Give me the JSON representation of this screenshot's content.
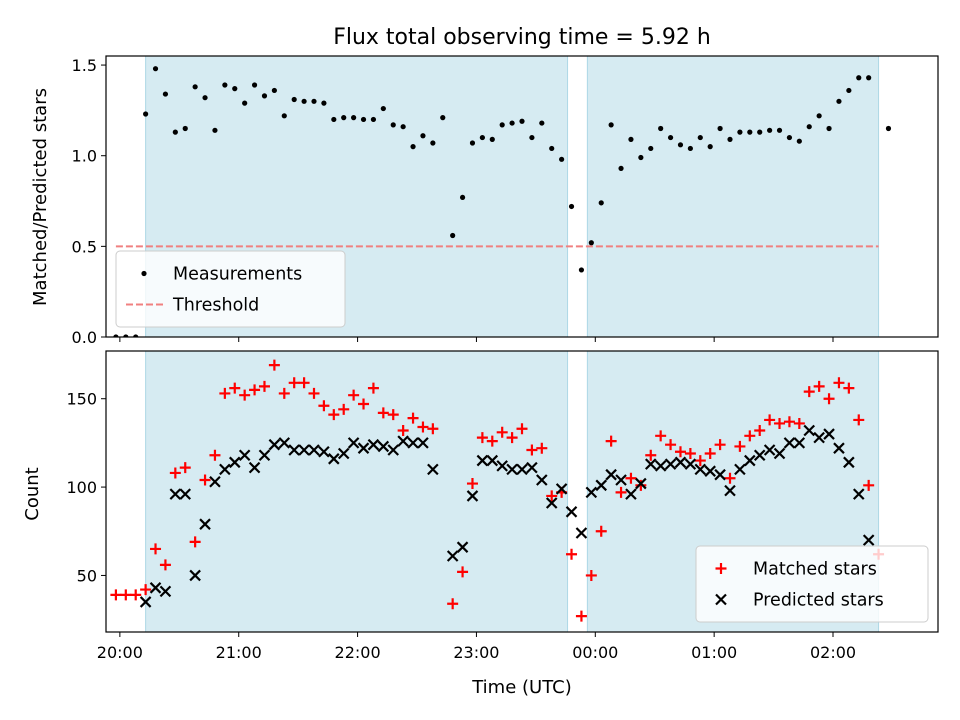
{
  "chart_data": [
    {
      "type": "scatter",
      "title": "Flux total observing time = 5.92 h",
      "ylabel": "Matched/Predicted stars",
      "xlabel": "",
      "xlim": [
        "19:53",
        "02:53"
      ],
      "ylim": [
        0,
        1.55
      ],
      "yticks": [
        "0.0",
        "0.5",
        "1.0",
        "1.5"
      ],
      "grid": false,
      "legend_position": "lower-left",
      "shaded_intervals": [
        [
          "20:13",
          "23:46"
        ],
        [
          "23:56",
          "02:23"
        ]
      ],
      "series": [
        {
          "name": "Measurements",
          "marker": "dot",
          "color": "#000000",
          "points": [
            [
              "19:58",
              0
            ],
            [
              "20:03",
              0
            ],
            [
              "20:08",
              0
            ],
            [
              "20:13",
              1.23
            ],
            [
              "20:18",
              1.48
            ],
            [
              "20:23",
              1.34
            ],
            [
              "20:28",
              1.13
            ],
            [
              "20:33",
              1.15
            ],
            [
              "20:38",
              1.38
            ],
            [
              "20:43",
              1.32
            ],
            [
              "20:48",
              1.14
            ],
            [
              "20:53",
              1.39
            ],
            [
              "20:58",
              1.37
            ],
            [
              "21:03",
              1.29
            ],
            [
              "21:08",
              1.39
            ],
            [
              "21:13",
              1.33
            ],
            [
              "21:18",
              1.36
            ],
            [
              "21:23",
              1.22
            ],
            [
              "21:28",
              1.31
            ],
            [
              "21:33",
              1.3
            ],
            [
              "21:38",
              1.3
            ],
            [
              "21:43",
              1.29
            ],
            [
              "21:48",
              1.2
            ],
            [
              "21:53",
              1.21
            ],
            [
              "21:58",
              1.21
            ],
            [
              "22:03",
              1.2
            ],
            [
              "22:08",
              1.2
            ],
            [
              "22:13",
              1.26
            ],
            [
              "22:18",
              1.17
            ],
            [
              "22:23",
              1.16
            ],
            [
              "22:28",
              1.05
            ],
            [
              "22:33",
              1.11
            ],
            [
              "22:38",
              1.07
            ],
            [
              "22:43",
              1.21
            ],
            [
              "22:48",
              0.56
            ],
            [
              "22:53",
              0.77
            ],
            [
              "22:58",
              1.07
            ],
            [
              "23:03",
              1.1
            ],
            [
              "23:08",
              1.09
            ],
            [
              "23:13",
              1.17
            ],
            [
              "23:18",
              1.18
            ],
            [
              "23:23",
              1.19
            ],
            [
              "23:28",
              1.1
            ],
            [
              "23:33",
              1.18
            ],
            [
              "23:38",
              1.04
            ],
            [
              "23:43",
              0.98
            ],
            [
              "23:48",
              0.72
            ],
            [
              "23:53",
              0.37
            ],
            [
              "23:58",
              0.52
            ],
            [
              "00:03",
              0.74
            ],
            [
              "00:08",
              1.17
            ],
            [
              "00:13",
              0.93
            ],
            [
              "00:18",
              1.09
            ],
            [
              "00:23",
              0.99
            ],
            [
              "00:28",
              1.04
            ],
            [
              "00:33",
              1.15
            ],
            [
              "00:38",
              1.1
            ],
            [
              "00:43",
              1.06
            ],
            [
              "00:48",
              1.04
            ],
            [
              "00:53",
              1.1
            ],
            [
              "00:58",
              1.05
            ],
            [
              "01:03",
              1.15
            ],
            [
              "01:08",
              1.09
            ],
            [
              "01:13",
              1.13
            ],
            [
              "01:18",
              1.13
            ],
            [
              "01:23",
              1.13
            ],
            [
              "01:28",
              1.14
            ],
            [
              "01:33",
              1.14
            ],
            [
              "01:38",
              1.1
            ],
            [
              "01:43",
              1.08
            ],
            [
              "01:48",
              1.16
            ],
            [
              "01:53",
              1.22
            ],
            [
              "01:58",
              1.15
            ],
            [
              "02:03",
              1.3
            ],
            [
              "02:08",
              1.36
            ],
            [
              "02:13",
              1.43
            ],
            [
              "02:18",
              1.43
            ],
            [
              "02:28",
              1.15
            ]
          ]
        },
        {
          "name": "Threshold",
          "style": "dashed",
          "color": "#f08080",
          "from": "19:58",
          "to": "02:23",
          "value": 0.5
        }
      ]
    },
    {
      "type": "scatter",
      "title": "",
      "xlabel": "Time (UTC)",
      "ylabel": "Count",
      "xlim": [
        "19:53",
        "02:53"
      ],
      "ylim": [
        18,
        177
      ],
      "yticks": [
        "50",
        "100",
        "150"
      ],
      "xticks": [
        "20:00",
        "21:00",
        "22:00",
        "23:00",
        "00:00",
        "01:00",
        "02:00"
      ],
      "grid": false,
      "legend_position": "lower-right",
      "shaded_intervals": [
        [
          "20:13",
          "23:46"
        ],
        [
          "23:56",
          "02:23"
        ]
      ],
      "series": [
        {
          "name": "Matched stars",
          "marker": "plus",
          "color": "#ff0000",
          "points": [
            [
              "19:58",
              39
            ],
            [
              "20:03",
              39
            ],
            [
              "20:08",
              39
            ],
            [
              "20:13",
              42
            ],
            [
              "20:18",
              65
            ],
            [
              "20:23",
              56
            ],
            [
              "20:28",
              108
            ],
            [
              "20:33",
              111
            ],
            [
              "20:38",
              69
            ],
            [
              "20:43",
              104
            ],
            [
              "20:48",
              118
            ],
            [
              "20:53",
              153
            ],
            [
              "20:58",
              156
            ],
            [
              "21:03",
              152
            ],
            [
              "21:08",
              155
            ],
            [
              "21:13",
              157
            ],
            [
              "21:18",
              169
            ],
            [
              "21:23",
              153
            ],
            [
              "21:28",
              159
            ],
            [
              "21:33",
              159
            ],
            [
              "21:38",
              153
            ],
            [
              "21:43",
              146
            ],
            [
              "21:48",
              141
            ],
            [
              "21:53",
              144
            ],
            [
              "21:58",
              152
            ],
            [
              "22:03",
              147
            ],
            [
              "22:08",
              156
            ],
            [
              "22:13",
              142
            ],
            [
              "22:18",
              141
            ],
            [
              "22:23",
              132
            ],
            [
              "22:28",
              139
            ],
            [
              "22:33",
              134
            ],
            [
              "22:38",
              133
            ],
            [
              "22:48",
              34
            ],
            [
              "22:53",
              52
            ],
            [
              "22:58",
              102
            ],
            [
              "23:03",
              128
            ],
            [
              "23:08",
              126
            ],
            [
              "23:13",
              131
            ],
            [
              "23:18",
              128
            ],
            [
              "23:23",
              133
            ],
            [
              "23:28",
              121
            ],
            [
              "23:33",
              122
            ],
            [
              "23:38",
              95
            ],
            [
              "23:43",
              97
            ],
            [
              "23:48",
              62
            ],
            [
              "23:53",
              27
            ],
            [
              "23:58",
              50
            ],
            [
              "00:03",
              75
            ],
            [
              "00:08",
              126
            ],
            [
              "00:13",
              97
            ],
            [
              "00:18",
              105
            ],
            [
              "00:23",
              101
            ],
            [
              "00:28",
              118
            ],
            [
              "00:33",
              129
            ],
            [
              "00:38",
              124
            ],
            [
              "00:43",
              120
            ],
            [
              "00:48",
              119
            ],
            [
              "00:53",
              115
            ],
            [
              "00:58",
              119
            ],
            [
              "01:03",
              124
            ],
            [
              "01:08",
              105
            ],
            [
              "01:13",
              123
            ],
            [
              "01:18",
              129
            ],
            [
              "01:23",
              132
            ],
            [
              "01:28",
              138
            ],
            [
              "01:33",
              136
            ],
            [
              "01:38",
              137
            ],
            [
              "01:43",
              136
            ],
            [
              "01:48",
              154
            ],
            [
              "01:53",
              157
            ],
            [
              "01:58",
              150
            ],
            [
              "02:03",
              159
            ],
            [
              "02:08",
              156
            ],
            [
              "02:13",
              138
            ],
            [
              "02:18",
              101
            ],
            [
              "02:23",
              62
            ]
          ]
        },
        {
          "name": "Predicted stars",
          "marker": "x",
          "color": "#000000",
          "points": [
            [
              "20:13",
              35
            ],
            [
              "20:18",
              43
            ],
            [
              "20:23",
              41
            ],
            [
              "20:28",
              96
            ],
            [
              "20:33",
              96
            ],
            [
              "20:38",
              50
            ],
            [
              "20:43",
              79
            ],
            [
              "20:48",
              103
            ],
            [
              "20:53",
              110
            ],
            [
              "20:58",
              114
            ],
            [
              "21:03",
              118
            ],
            [
              "21:08",
              111
            ],
            [
              "21:13",
              118
            ],
            [
              "21:18",
              124
            ],
            [
              "21:23",
              125
            ],
            [
              "21:28",
              121
            ],
            [
              "21:33",
              121
            ],
            [
              "21:38",
              121
            ],
            [
              "21:43",
              120
            ],
            [
              "21:48",
              116
            ],
            [
              "21:53",
              119
            ],
            [
              "21:58",
              125
            ],
            [
              "22:03",
              122
            ],
            [
              "22:08",
              124
            ],
            [
              "22:13",
              123
            ],
            [
              "22:18",
              121
            ],
            [
              "22:23",
              126
            ],
            [
              "22:28",
              125
            ],
            [
              "22:33",
              125
            ],
            [
              "22:38",
              110
            ],
            [
              "22:48",
              61
            ],
            [
              "22:53",
              66
            ],
            [
              "22:58",
              95
            ],
            [
              "23:03",
              115
            ],
            [
              "23:08",
              115
            ],
            [
              "23:13",
              112
            ],
            [
              "23:18",
              110
            ],
            [
              "23:23",
              110
            ],
            [
              "23:28",
              111
            ],
            [
              "23:33",
              104
            ],
            [
              "23:38",
              91
            ],
            [
              "23:43",
              99
            ],
            [
              "23:48",
              86
            ],
            [
              "23:53",
              74
            ],
            [
              "23:58",
              97
            ],
            [
              "00:03",
              101
            ],
            [
              "00:08",
              107
            ],
            [
              "00:13",
              104
            ],
            [
              "00:18",
              96
            ],
            [
              "00:23",
              102
            ],
            [
              "00:28",
              113
            ],
            [
              "00:33",
              112
            ],
            [
              "00:38",
              113
            ],
            [
              "00:43",
              114
            ],
            [
              "00:48",
              113
            ],
            [
              "00:53",
              110
            ],
            [
              "00:58",
              109
            ],
            [
              "01:03",
              107
            ],
            [
              "01:08",
              98
            ],
            [
              "01:13",
              110
            ],
            [
              "01:18",
              115
            ],
            [
              "01:23",
              118
            ],
            [
              "01:28",
              121
            ],
            [
              "01:33",
              119
            ],
            [
              "01:38",
              125
            ],
            [
              "01:43",
              125
            ],
            [
              "01:48",
              132
            ],
            [
              "01:53",
              128
            ],
            [
              "01:58",
              130
            ],
            [
              "02:03",
              122
            ],
            [
              "02:08",
              114
            ],
            [
              "02:13",
              96
            ],
            [
              "02:18",
              70
            ]
          ]
        }
      ]
    }
  ]
}
